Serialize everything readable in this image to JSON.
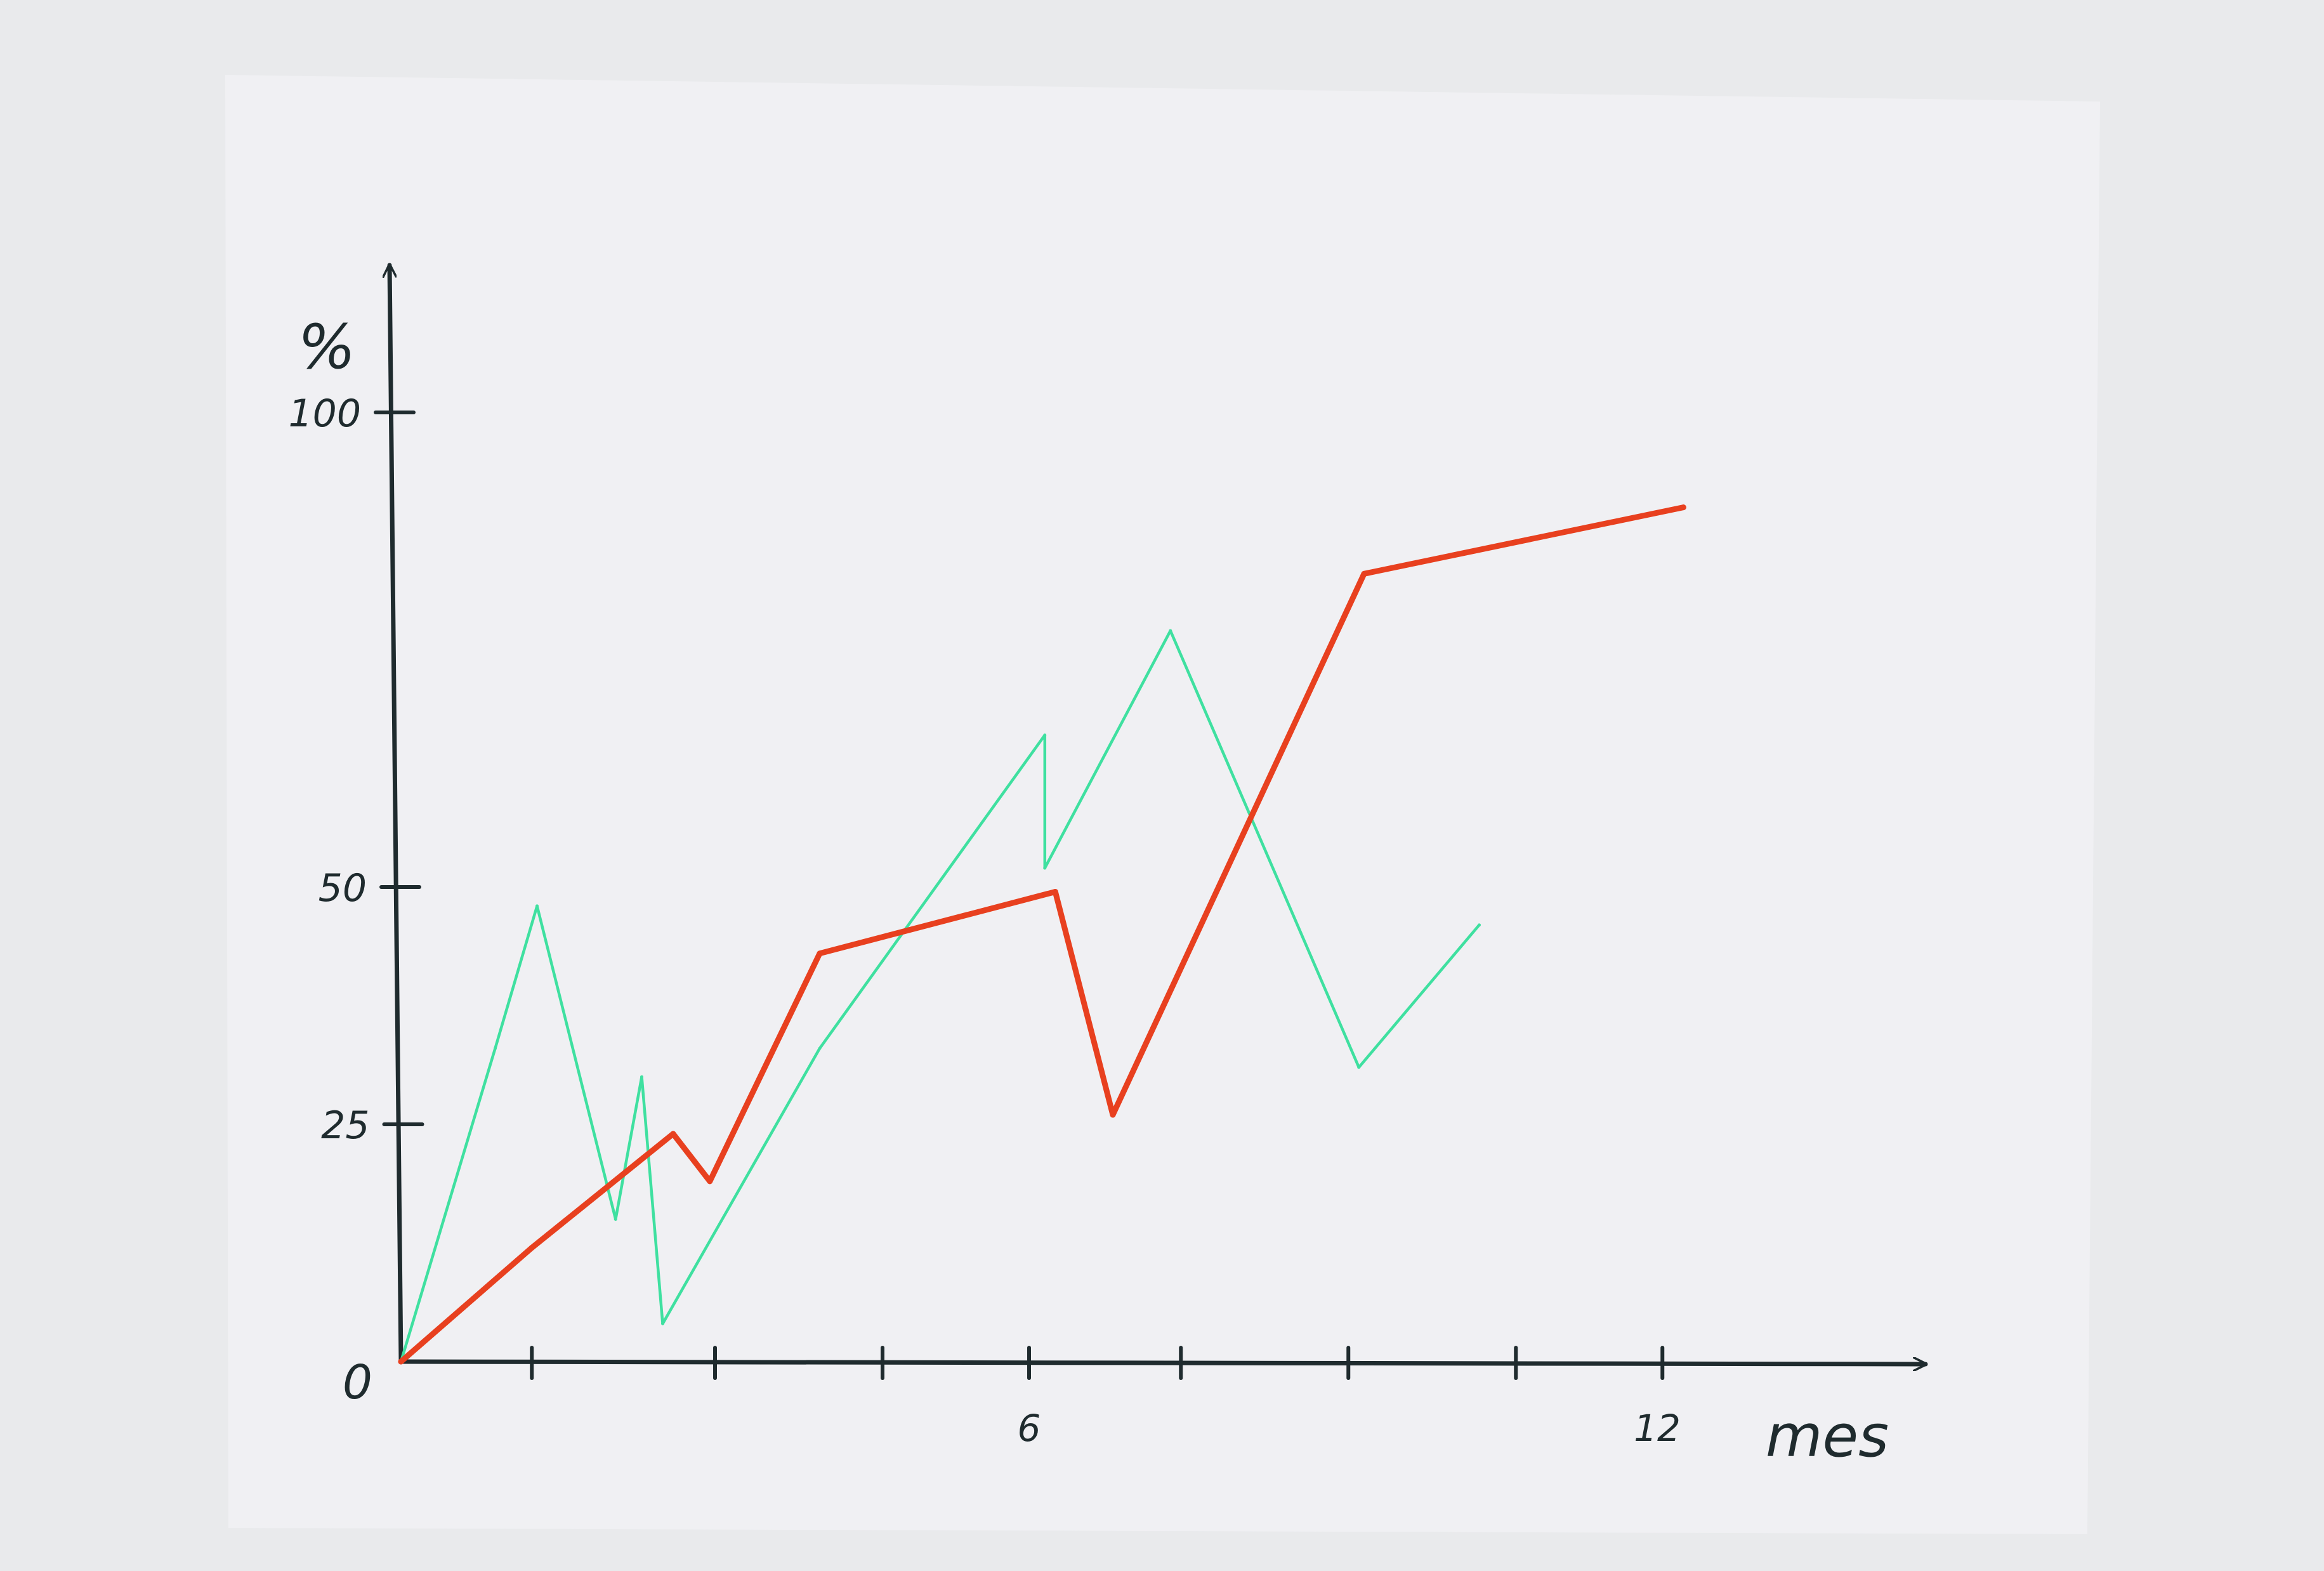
{
  "chart_data": {
    "type": "line",
    "title": "",
    "xlabel": "mes",
    "ylabel": "%",
    "xlim": [
      0,
      12
    ],
    "ylim": [
      0,
      100
    ],
    "x_ticks": [
      1.25,
      3,
      4.6,
      6,
      7.45,
      9.05,
      10.65,
      12.05
    ],
    "x_tick_labels": [
      {
        "x": 6,
        "label": "6"
      },
      {
        "x": 12,
        "label": "12"
      }
    ],
    "y_tick_labels": [
      {
        "y": 0,
        "label": "0"
      },
      {
        "y": 25,
        "label": "25"
      },
      {
        "y": 50,
        "label": "50"
      },
      {
        "y": 100,
        "label": "100"
      }
    ],
    "grid": false,
    "legend": false,
    "series": [
      {
        "color": "#e8401f",
        "x": [
          0,
          1.25,
          2.6,
          2.95,
          4.0,
          6.25,
          6.8,
          9.2,
          12.25
        ],
        "y": [
          0,
          12,
          24,
          19,
          43,
          49.5,
          26,
          83,
          90
        ]
      },
      {
        "color": "#3fe0a0",
        "x": [
          0,
          0.9,
          1.3,
          2.05,
          2.3,
          2.5,
          4.0,
          6.15,
          6.15,
          7.35,
          9.15,
          10.3
        ],
        "y": [
          0,
          33,
          48,
          15,
          30,
          4,
          33,
          66,
          52,
          77,
          31,
          46
        ]
      }
    ]
  }
}
